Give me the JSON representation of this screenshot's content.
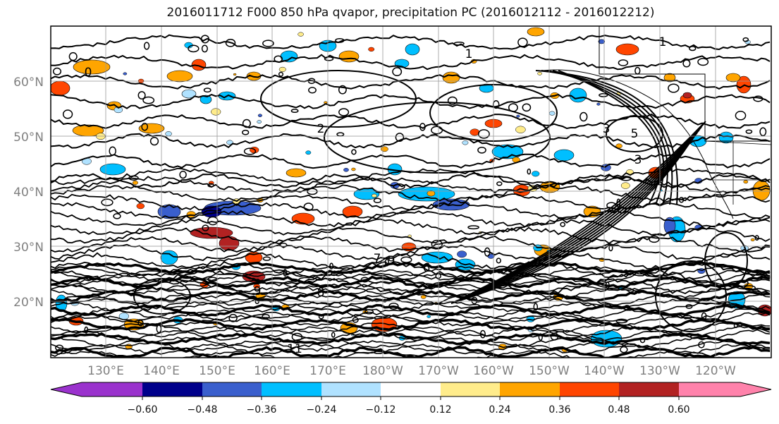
{
  "title": "2016011712 F000 850 hPa qvapor, precipitation PC (2016012112 - 2016012212)",
  "map": {
    "lat_labels": [
      "60°N",
      "50°N",
      "40°N",
      "30°N",
      "20°N"
    ],
    "lon_labels": [
      "130°E",
      "140°E",
      "150°E",
      "160°E",
      "170°E",
      "180°W",
      "170°W",
      "160°W",
      "150°W",
      "140°W",
      "130°W",
      "120°W"
    ],
    "contour_labels": [
      "0",
      "1",
      "2",
      "3",
      "5",
      "3",
      "1",
      "9",
      "6",
      "7",
      "8",
      "9",
      "11"
    ]
  },
  "colorbar": {
    "ticks": [
      "−0.60",
      "−0.48",
      "−0.36",
      "−0.24",
      "−0.12",
      "0.12",
      "0.24",
      "0.36",
      "0.48",
      "0.60"
    ],
    "colors": [
      "#9a32cd",
      "#00008b",
      "#3a5fcd",
      "#00bfff",
      "#b0e2ff",
      "#ffffff",
      "#ffec8b",
      "#ffa500",
      "#ff4500",
      "#b22222",
      "#ff82ab"
    ]
  }
}
